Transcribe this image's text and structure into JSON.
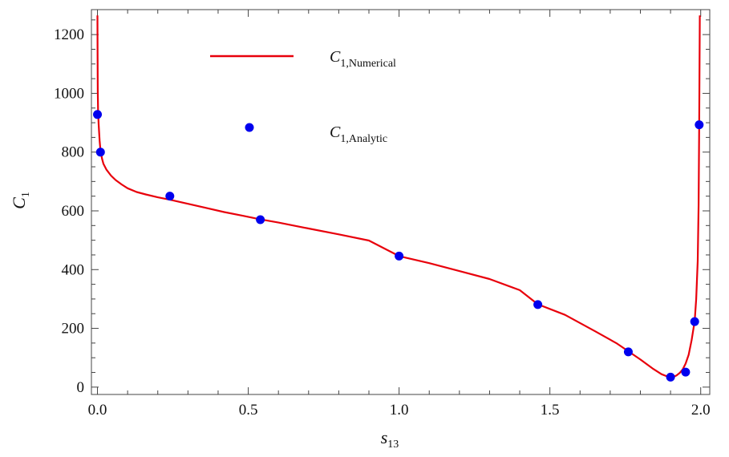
{
  "chart_data": {
    "type": "line",
    "xlabel": "s",
    "xlabel_sub": "13",
    "ylabel": "C",
    "ylabel_sub": "1",
    "xlim": [
      -0.02,
      2.03
    ],
    "ylim": [
      -25,
      1285
    ],
    "xticks": [
      0.0,
      0.5,
      1.0,
      1.5,
      2.0
    ],
    "xtick_labels": [
      "0.0",
      "0.5",
      "1.0",
      "1.5",
      "2.0"
    ],
    "yticks": [
      0,
      200,
      400,
      600,
      800,
      1000,
      1200
    ],
    "ytick_labels": [
      "0",
      "200",
      "400",
      "600",
      "800",
      "1000",
      "1200"
    ],
    "legend": {
      "placement": "top-left",
      "entries": [
        {
          "base": "C",
          "sub": "1,Numerical",
          "marker": "line",
          "color": "#e8000b"
        },
        {
          "base": "C",
          "sub": "1,Analytic",
          "marker": "dot",
          "color": "#0000ee"
        }
      ]
    },
    "series": [
      {
        "marker": "line",
        "color": "#e8000b",
        "x": [
          0.0,
          0.0005,
          0.001,
          0.002,
          0.004,
          0.007,
          0.01,
          0.015,
          0.02,
          0.03,
          0.045,
          0.06,
          0.08,
          0.1,
          0.13,
          0.16,
          0.2,
          0.24,
          0.3,
          0.36,
          0.42,
          0.48,
          0.54,
          0.6,
          0.7,
          0.8,
          0.9,
          1.0,
          1.1,
          1.2,
          1.3,
          1.4,
          1.46,
          1.55,
          1.65,
          1.72,
          1.76,
          1.8,
          1.84,
          1.87,
          1.89,
          1.9,
          1.91,
          1.92,
          1.93,
          1.94,
          1.95,
          1.96,
          1.97,
          1.98,
          1.985,
          1.99,
          1.993,
          1.995,
          1.997
        ],
        "y": [
          1265,
          1120,
          1010,
          940,
          895,
          840,
          805,
          778,
          760,
          740,
          720,
          705,
          690,
          677,
          664,
          656,
          646,
          638,
          624,
          610,
          596,
          584,
          571,
          560,
          540,
          520,
          499,
          446,
          422,
          395,
          368,
          330,
          282,
          246,
          190,
          150,
          122,
          94,
          64,
          44,
          36,
          34,
          35,
          40,
          48,
          60,
          80,
          110,
          160,
          225,
          300,
          430,
          620,
          880,
          1265
        ]
      },
      {
        "marker": "dot",
        "color": "#0000ee",
        "x": [
          0.0,
          0.01,
          0.24,
          0.54,
          1.0,
          1.46,
          1.76,
          1.9,
          1.95,
          1.98,
          1.995
        ],
        "y": [
          928,
          800,
          650,
          570,
          446,
          281,
          120,
          34,
          51,
          223,
          893
        ]
      }
    ]
  }
}
